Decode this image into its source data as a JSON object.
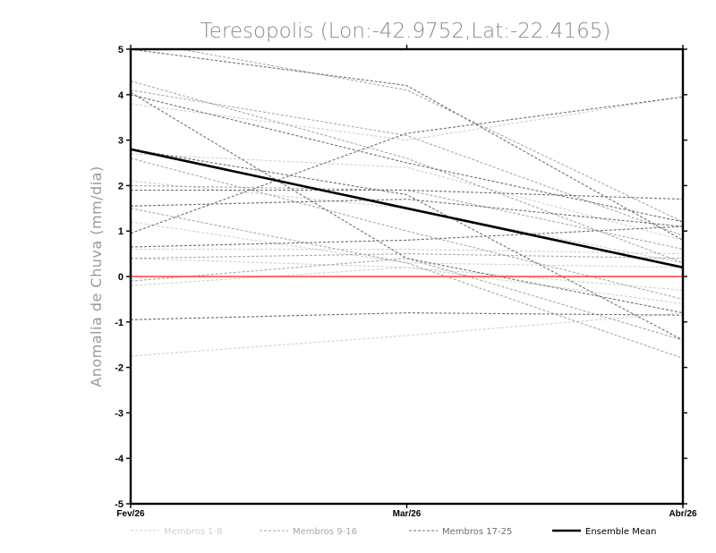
{
  "chart_data": {
    "type": "line",
    "title": "Teresopolis (Lon:-42.9752,Lat:-22.4165)",
    "xlabel": "",
    "ylabel": "Anomalia de Chuva (mm/dia)",
    "categories": [
      "Fev/26",
      "Mar/26",
      "Abr/26"
    ],
    "ylim": [
      -5,
      5
    ],
    "yticks": [
      "5",
      "4",
      "3",
      "2",
      "1",
      "0",
      "-1",
      "-2",
      "-3",
      "-4",
      "-5"
    ],
    "grid": false,
    "legend_position": "bottom",
    "groups": [
      {
        "name": "Membros 1-8",
        "color": "#d0d0d0",
        "dashed": true
      },
      {
        "name": "Membros 9-16",
        "color": "#a8a8a8",
        "dashed": true
      },
      {
        "name": "Membros 17-25",
        "color": "#6e6e6e",
        "dashed": true
      },
      {
        "name": "Ensemble Mean",
        "color": "#000000",
        "dashed": false
      }
    ],
    "series": [
      {
        "group": 0,
        "values": [
          3.8,
          3.0,
          3.95
        ]
      },
      {
        "group": 0,
        "values": [
          2.7,
          2.4,
          0.8
        ]
      },
      {
        "group": 0,
        "values": [
          2.1,
          1.5,
          0.3
        ]
      },
      {
        "group": 0,
        "values": [
          1.2,
          0.3,
          0.2
        ]
      },
      {
        "group": 0,
        "values": [
          0.6,
          0.6,
          0.5
        ]
      },
      {
        "group": 0,
        "values": [
          0.4,
          0.2,
          -0.3
        ]
      },
      {
        "group": 0,
        "values": [
          -0.2,
          0.2,
          -0.6
        ]
      },
      {
        "group": 0,
        "values": [
          -1.75,
          -1.3,
          -0.8
        ]
      },
      {
        "group": 1,
        "values": [
          4.3,
          2.6,
          0.3
        ]
      },
      {
        "group": 1,
        "values": [
          4.1,
          3.1,
          0.9
        ]
      },
      {
        "group": 1,
        "values": [
          2.6,
          1.0,
          -0.5
        ]
      },
      {
        "group": 1,
        "values": [
          2.0,
          1.9,
          0.6
        ]
      },
      {
        "group": 1,
        "values": [
          1.5,
          0.3,
          -1.8
        ]
      },
      {
        "group": 1,
        "values": [
          0.4,
          0.5,
          0.4
        ]
      },
      {
        "group": 1,
        "values": [
          -0.1,
          0.4,
          -1.4
        ]
      },
      {
        "group": 1,
        "values": [
          5.2,
          4.1,
          1.2
        ]
      },
      {
        "group": 2,
        "values": [
          4.0,
          2.5,
          1.2
        ]
      },
      {
        "group": 2,
        "values": [
          1.9,
          1.9,
          1.7
        ]
      },
      {
        "group": 2,
        "values": [
          1.55,
          1.7,
          1.1
        ]
      },
      {
        "group": 2,
        "values": [
          0.95,
          3.15,
          3.95
        ]
      },
      {
        "group": 2,
        "values": [
          0.65,
          0.8,
          1.1
        ]
      },
      {
        "group": 2,
        "values": [
          -0.95,
          -0.8,
          -0.85
        ]
      },
      {
        "group": 2,
        "values": [
          4.05,
          0.4,
          -0.8
        ]
      },
      {
        "group": 2,
        "values": [
          5.0,
          4.2,
          0.8
        ]
      },
      {
        "group": 2,
        "values": [
          2.8,
          1.8,
          -1.4
        ]
      },
      {
        "group": 3,
        "values": [
          2.8,
          1.5,
          0.2
        ]
      }
    ],
    "reference_line": {
      "y": 0,
      "color": "#ff4040"
    }
  }
}
